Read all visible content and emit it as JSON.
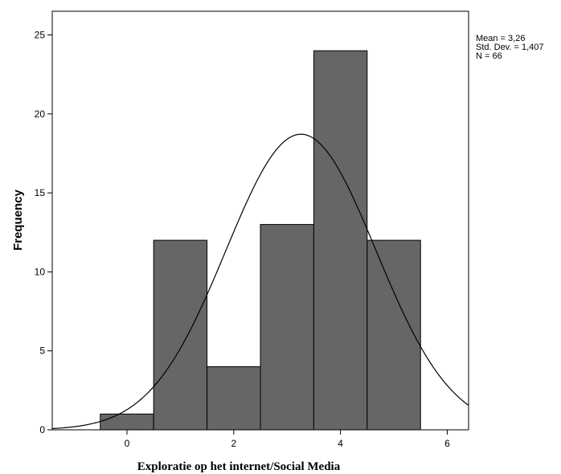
{
  "chart_data": {
    "type": "bar",
    "subtype": "histogram",
    "bins": [
      {
        "from": -0.5,
        "to": 0.5,
        "count": 1
      },
      {
        "from": 0.5,
        "to": 1.5,
        "count": 12
      },
      {
        "from": 1.5,
        "to": 2.5,
        "count": 4
      },
      {
        "from": 2.5,
        "to": 3.5,
        "count": 13
      },
      {
        "from": 3.5,
        "to": 4.5,
        "count": 24
      },
      {
        "from": 4.5,
        "to": 5.5,
        "count": 12
      }
    ],
    "normal_curve": {
      "mean": 3.26,
      "std_dev": 1.407,
      "n": 66,
      "bin_width": 1
    },
    "xlim": [
      -1.4,
      6.4
    ],
    "ylim": [
      0,
      26.5
    ],
    "xticks": [
      0,
      2,
      4,
      6
    ],
    "yticks": [
      0,
      5,
      10,
      15,
      20,
      25
    ],
    "xlabel": "Exploratie op het internet/Social Media",
    "ylabel": "Frequency",
    "stats": [
      "Mean = 3,26",
      "Std. Dev. = 1,407",
      "N = 66"
    ],
    "bar_color": "#666666",
    "grid": false,
    "legend": "none"
  }
}
